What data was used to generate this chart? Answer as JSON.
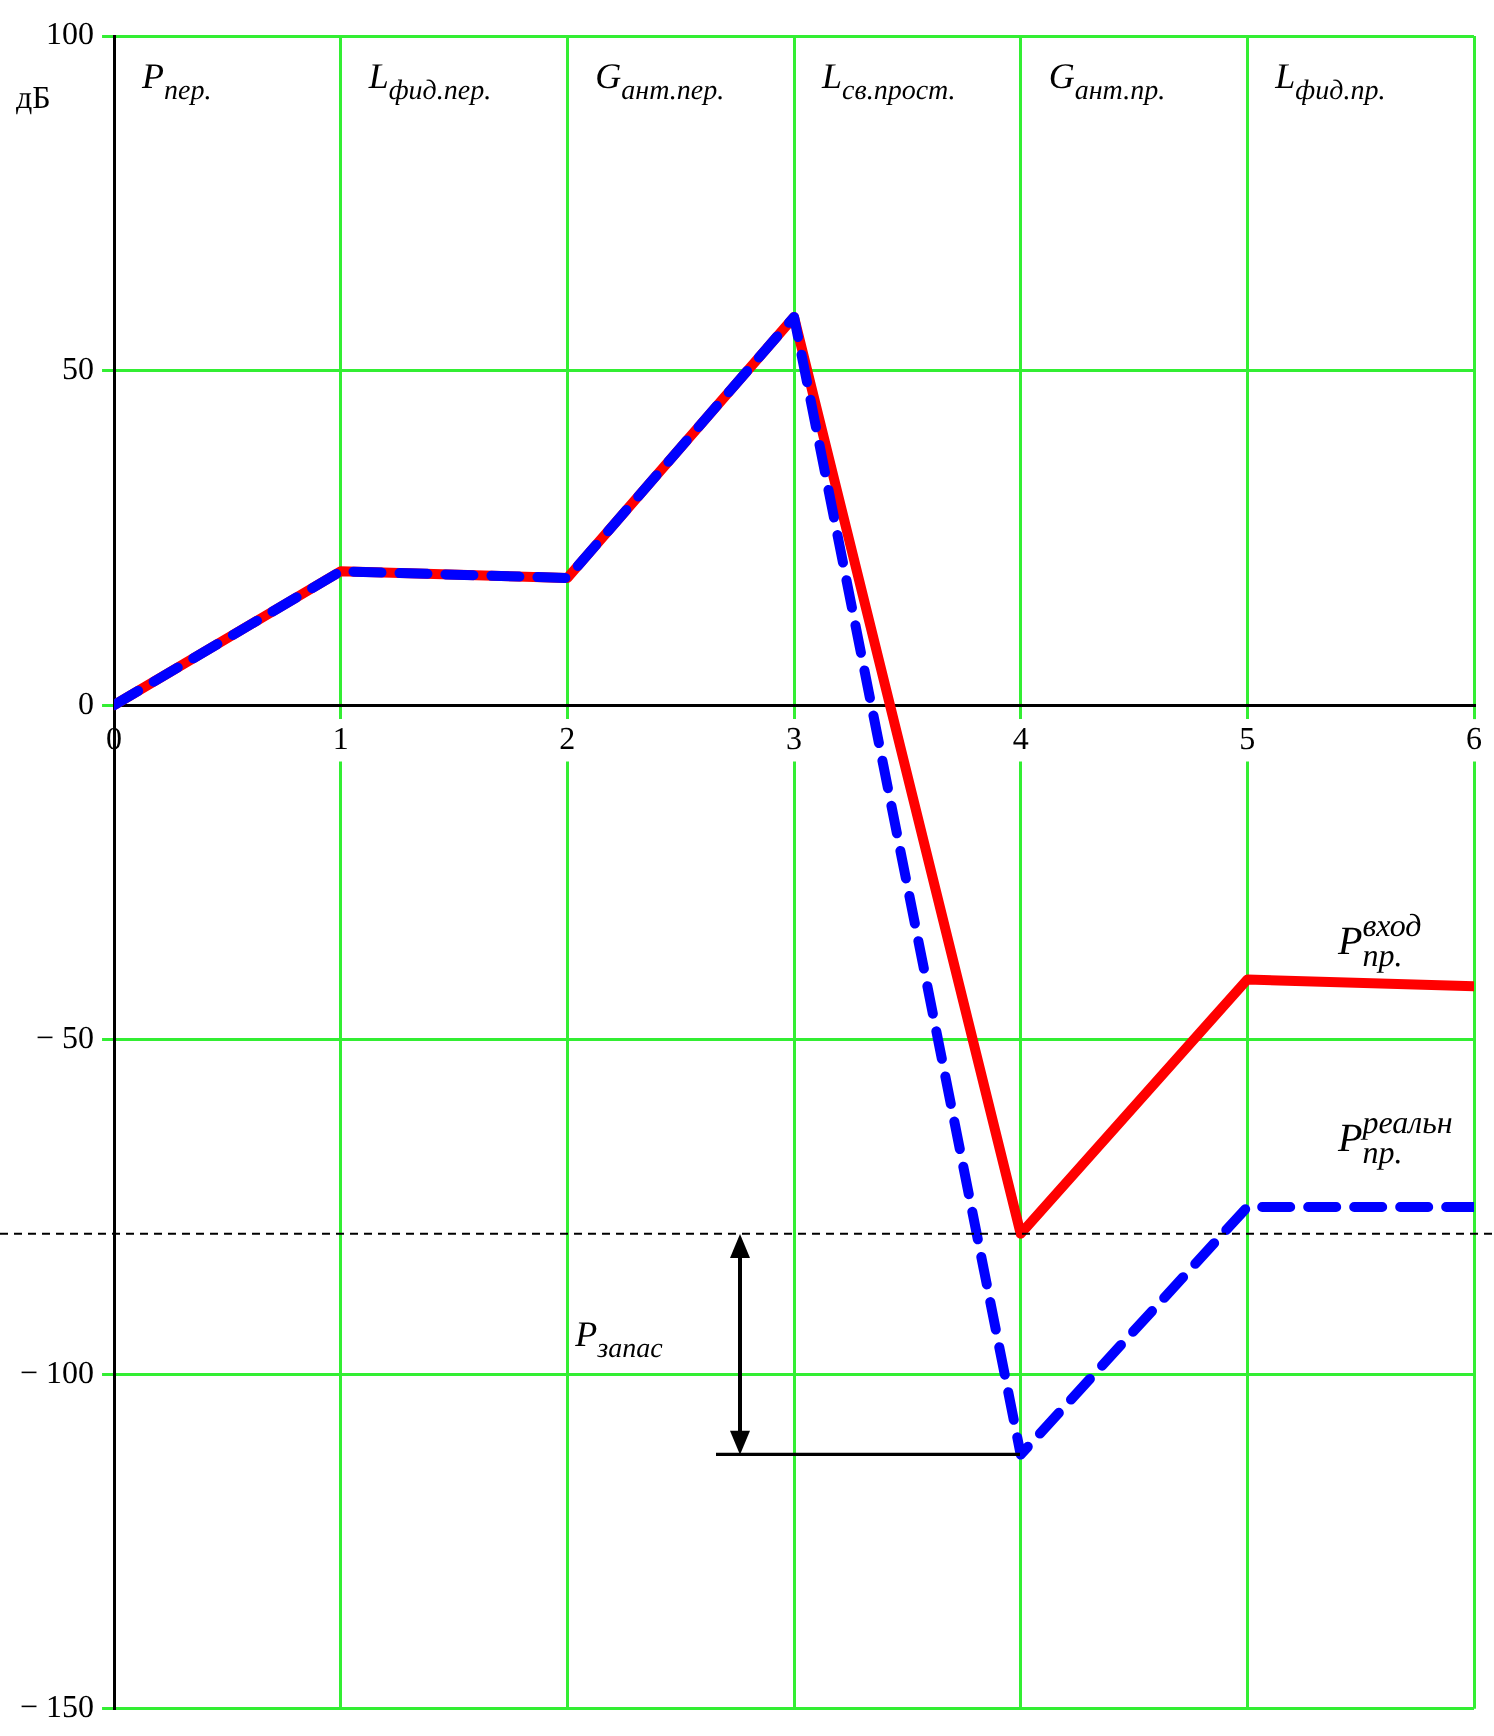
{
  "chart_data": {
    "type": "line",
    "ylabel": "дБ",
    "x": [
      0,
      1,
      2,
      3,
      4,
      5,
      6
    ],
    "series": [
      {
        "name": "P$_{пр.}$$^{вход}$",
        "color": "#ff0000",
        "line_style": "solid",
        "values": [
          0,
          20,
          19,
          58,
          -79,
          -41,
          -42
        ]
      },
      {
        "name": "P$_{пр.}$$^{реальн}$",
        "color": "#0000ff",
        "line_style": "dashed",
        "values": [
          0,
          20,
          19,
          58,
          -112,
          -75,
          -75
        ]
      }
    ],
    "xlim": [
      0,
      6
    ],
    "xticks": [
      0,
      1,
      2,
      3,
      4,
      5,
      6
    ],
    "ylim": [
      -150,
      100
    ],
    "yticks": [
      {
        "value": -150,
        "label": "− 150"
      },
      {
        "value": -100,
        "label": "− 100"
      },
      {
        "value": -50,
        "label": "− 50"
      },
      0,
      50,
      100
    ],
    "grid": true,
    "legend": false,
    "marker": "none",
    "ref_lines": [
      {
        "axis": "y",
        "value": -79,
        "color": "#000000",
        "line_style": "dashed"
      }
    ],
    "annotations": [
      "P$_{пер.}$",
      "L$_{фид.пер.}$",
      "G$_{ант.пер.}$",
      "L$_{св.прост.}$",
      "G$_{ант.пр.}$",
      "L$_{фид.пр.}$",
      "P$_{запас}$"
    ]
  }
}
